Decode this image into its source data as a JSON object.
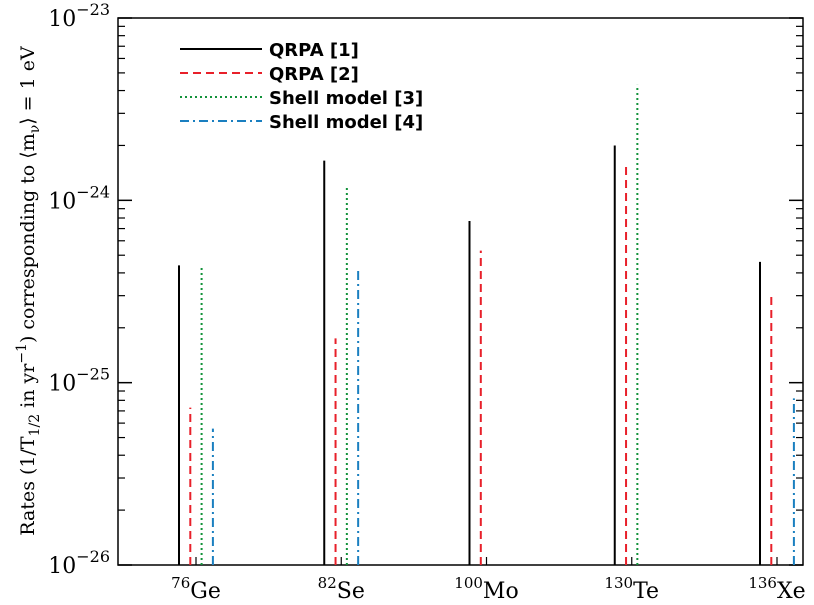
{
  "chart_data": {
    "type": "bar",
    "title": "",
    "xlabel": "",
    "ylabel": {
      "prefix": "Rates (1/T",
      "sub1": "1/2",
      "mid": " in yr",
      "sup1": "−1",
      "mid2": ") corresponding to ⟨m",
      "sub2": "ν",
      "suffix": "⟩ = 1 eV"
    },
    "yscale": "log",
    "ylim": [
      1e-26,
      1e-23
    ],
    "yticks": [
      {
        "value": 1e-26,
        "base": "10",
        "exp": "−26"
      },
      {
        "value": 1e-25,
        "base": "10",
        "exp": "−25"
      },
      {
        "value": 1e-24,
        "base": "10",
        "exp": "−24"
      },
      {
        "value": 1e-23,
        "base": "10",
        "exp": "−23"
      }
    ],
    "categories": [
      {
        "mass": "76",
        "symbol": "Ge"
      },
      {
        "mass": "82",
        "symbol": "Se"
      },
      {
        "mass": "100",
        "symbol": "Mo"
      },
      {
        "mass": "130",
        "symbol": "Te"
      },
      {
        "mass": "136",
        "symbol": "Xe"
      }
    ],
    "series": [
      {
        "name": "QRPA [1]",
        "color": "#000000",
        "dash": "solid",
        "values": [
          4.4e-25,
          1.65e-24,
          7.7e-25,
          2e-24,
          4.6e-25
        ]
      },
      {
        "name": "QRPA [2]",
        "color": "#e8202a",
        "dash": "dashed",
        "values": [
          7.3e-26,
          1.75e-25,
          5.3e-25,
          1.55e-24,
          3.1e-25
        ]
      },
      {
        "name": "Shell model [3]",
        "color": "#12923a",
        "dash": "dotted",
        "values": [
          4.3e-25,
          1.2e-24,
          null,
          4.3e-24,
          null
        ]
      },
      {
        "name": "Shell model [4]",
        "color": "#1a7fc0",
        "dash": "dashdot",
        "values": [
          5.6e-26,
          4.1e-25,
          null,
          null,
          8.2e-26
        ]
      }
    ],
    "grid": false,
    "legend_position": "top-left"
  }
}
